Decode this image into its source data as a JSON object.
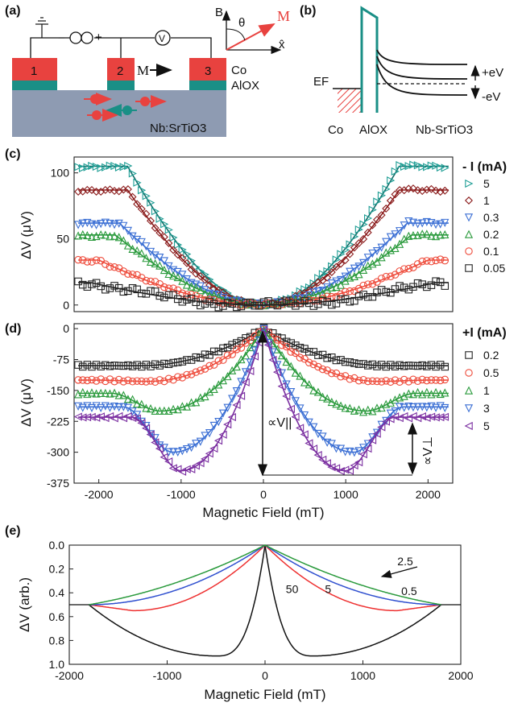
{
  "figure": {
    "panel_labels": [
      "(a)",
      "(b)",
      "(c)",
      "(d)",
      "(e)"
    ]
  },
  "panel_a": {
    "contact_labels": [
      "1",
      "2",
      "3"
    ],
    "layer_labels": [
      "Co",
      "AlOX",
      "Nb:SrTiO3"
    ],
    "magnetization_label": "M",
    "meter_label": "V",
    "polarity": [
      "−",
      "+"
    ],
    "inset_axis": {
      "vertical": "B",
      "horizontal": "x̂",
      "angle": "θ",
      "vector": "M"
    },
    "colors": {
      "contact": "#e8423f",
      "barrier": "#1a8f86",
      "substrate": "#8e9bb2",
      "arrow": "#e8423f"
    }
  },
  "panel_b": {
    "labels": [
      "Co",
      "AlOX",
      "Nb-SrTiO3"
    ],
    "fermi_label": "EF",
    "bias_labels": [
      "+eV",
      "-eV"
    ],
    "colors": {
      "barrier": "#1a8f86",
      "hatch": "#e8423f"
    }
  },
  "chart_data": [
    {
      "id": "c",
      "type": "scatter",
      "xlim": [
        -2300,
        2300
      ],
      "ylim": [
        -5,
        112
      ],
      "yticks": [
        0,
        50,
        100
      ],
      "ylabel": "ΔV (μV)",
      "legend_title": "- I (mA)",
      "legend_placement": "right",
      "series": [
        {
          "name": "5",
          "marker": "triangle-right",
          "color": "#1f9e95",
          "plateau": 105,
          "sat": 1650
        },
        {
          "name": "1",
          "marker": "diamond",
          "color": "#8a1a1a",
          "plateau": 87,
          "sat": 1650
        },
        {
          "name": "0.3",
          "marker": "triangle-down",
          "color": "#3b6fd4",
          "plateau": 62,
          "sat": 1750
        },
        {
          "name": "0.2",
          "marker": "triangle-up",
          "color": "#2a9a3c",
          "plateau": 53,
          "sat": 1800
        },
        {
          "name": "0.1",
          "marker": "circle",
          "color": "#ee4b3b",
          "plateau": 34,
          "sat": 2000
        },
        {
          "name": "0.05",
          "marker": "square",
          "color": "#222222",
          "plateau": 17,
          "sat": 2100
        }
      ]
    },
    {
      "id": "d",
      "type": "scatter",
      "xlim": [
        -2300,
        2300
      ],
      "ylim": [
        -375,
        12
      ],
      "xticks": [
        -2000,
        -1000,
        0,
        1000,
        2000
      ],
      "yticks": [
        0,
        -75,
        -150,
        -225,
        -300,
        -375
      ],
      "xlabel": "Magnetic Field (mT)",
      "ylabel": "ΔV (μV)",
      "legend_title": "+I (mA)",
      "legend_placement": "right",
      "annotations": [
        "∝V||",
        "∝V⊥"
      ],
      "series": [
        {
          "name": "0.2",
          "marker": "square",
          "color": "#222222",
          "plateau": -90,
          "dip": -90,
          "dip_x": 1500
        },
        {
          "name": "0.5",
          "marker": "circle",
          "color": "#ee4b3b",
          "plateau": -125,
          "dip": -128,
          "dip_x": 1400
        },
        {
          "name": "1",
          "marker": "triangle-up",
          "color": "#2a9a3c",
          "plateau": -157,
          "dip": -200,
          "dip_x": 1250
        },
        {
          "name": "3",
          "marker": "triangle-down",
          "color": "#3b6fd4",
          "plateau": -190,
          "dip": -300,
          "dip_x": 1100
        },
        {
          "name": "5",
          "marker": "triangle-left",
          "color": "#7a2ea0",
          "plateau": -215,
          "dip": -345,
          "dip_x": 1000
        }
      ]
    },
    {
      "id": "e",
      "type": "line",
      "xlim": [
        -2000,
        2000
      ],
      "ylim": [
        1.0,
        0.0
      ],
      "xticks": [
        -2000,
        -1000,
        0,
        1000,
        2000
      ],
      "yticks": [
        0.0,
        0.2,
        0.4,
        0.6,
        0.8,
        1.0
      ],
      "xlabel": "Magnetic Field (mT)",
      "ylabel": "ΔV (arb.)",
      "series": [
        {
          "name": "50",
          "color": "#111111",
          "dip": 0.93,
          "dip_x": 500
        },
        {
          "name": "5",
          "color": "#ee3030",
          "dip": 0.55,
          "dip_x": 1350
        },
        {
          "name": "2.5",
          "color": "#2f4fcf",
          "dip": 0.5,
          "dip_x": 1800
        },
        {
          "name": "0.5",
          "color": "#2a9a3c",
          "dip": 0.5,
          "dip_x": 1800
        }
      ]
    }
  ]
}
